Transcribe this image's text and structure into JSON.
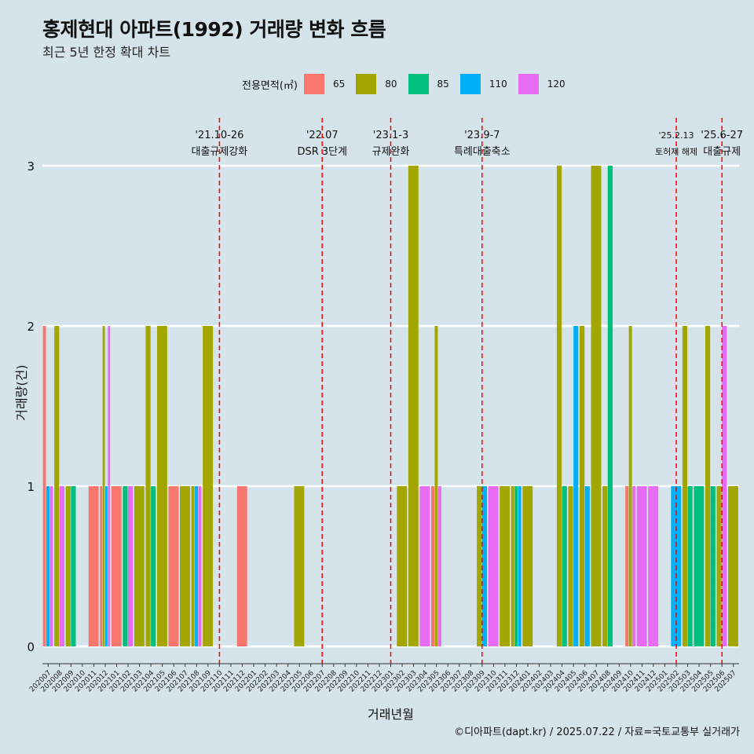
{
  "title": "홍제현대 아파트(1992) 거래량 변화 흐름",
  "subtitle": "최근 5년 한정 확대 차트",
  "caption": "©디아파트(dapt.kr) / 2025.07.22 / 자료=국토교통부 실거래가",
  "legend": {
    "title": "전용면적(㎡)",
    "items": [
      {
        "label": "65",
        "color": "#f8766d"
      },
      {
        "label": "80",
        "color": "#a3a500"
      },
      {
        "label": "85",
        "color": "#00bf7d"
      },
      {
        "label": "110",
        "color": "#00b0f6"
      },
      {
        "label": "120",
        "color": "#e76bf3"
      }
    ]
  },
  "chart_data": {
    "type": "bar",
    "xlabel": "거래년월",
    "ylabel": "거래량(건)",
    "yticks": [
      0,
      1,
      2,
      3
    ],
    "ylim": [
      0,
      3
    ],
    "categories": [
      "202007",
      "202008",
      "202009",
      "202010",
      "202011",
      "202012",
      "202101",
      "202102",
      "202103",
      "202104",
      "202105",
      "202106",
      "202107",
      "202108",
      "202109",
      "202110",
      "202111",
      "202112",
      "202201",
      "202202",
      "202203",
      "202204",
      "202205",
      "202206",
      "202207",
      "202208",
      "202209",
      "202210",
      "202211",
      "202212",
      "202301",
      "202302",
      "202303",
      "202304",
      "202305",
      "202306",
      "202307",
      "202308",
      "202309",
      "202310",
      "202311",
      "202312",
      "202401",
      "202402",
      "202403",
      "202404",
      "202405",
      "202406",
      "202407",
      "202408",
      "202409",
      "202410",
      "202411",
      "202412",
      "202501",
      "202502",
      "202503",
      "202504",
      "202505",
      "202506",
      "202507"
    ],
    "series_names": [
      "65",
      "80",
      "85",
      "110",
      "120"
    ],
    "bars": [
      {
        "month": "202007",
        "values": [
          2,
          0,
          0,
          1,
          1
        ]
      },
      {
        "month": "202008",
        "values": [
          0,
          2,
          0,
          0,
          1
        ]
      },
      {
        "month": "202009",
        "values": [
          0,
          1,
          1,
          0,
          0
        ]
      },
      {
        "month": "202011",
        "values": [
          1,
          0,
          0,
          0,
          0
        ]
      },
      {
        "month": "202012",
        "values": [
          1,
          2,
          0,
          1,
          2
        ]
      },
      {
        "month": "202101",
        "values": [
          1,
          0,
          0,
          0,
          0
        ]
      },
      {
        "month": "202102",
        "values": [
          0,
          0,
          1,
          0,
          1
        ]
      },
      {
        "month": "202103",
        "values": [
          0,
          1,
          0,
          0,
          0
        ]
      },
      {
        "month": "202104",
        "values": [
          0,
          2,
          1,
          0,
          0
        ]
      },
      {
        "month": "202105",
        "values": [
          0,
          2,
          0,
          0,
          0
        ]
      },
      {
        "month": "202106",
        "values": [
          1,
          0,
          0,
          0,
          0
        ]
      },
      {
        "month": "202107",
        "values": [
          0,
          1,
          0,
          0,
          0
        ]
      },
      {
        "month": "202108",
        "values": [
          0,
          1,
          0,
          1,
          1
        ]
      },
      {
        "month": "202109",
        "values": [
          0,
          2,
          0,
          0,
          0
        ]
      },
      {
        "month": "202112",
        "values": [
          1,
          0,
          0,
          0,
          0
        ]
      },
      {
        "month": "202205",
        "values": [
          0,
          1,
          0,
          0,
          0
        ]
      },
      {
        "month": "202302",
        "values": [
          0,
          1,
          0,
          0,
          0
        ]
      },
      {
        "month": "202303",
        "values": [
          0,
          3,
          0,
          0,
          0
        ]
      },
      {
        "month": "202304",
        "values": [
          0,
          0,
          0,
          0,
          1
        ]
      },
      {
        "month": "202305",
        "values": [
          1,
          2,
          0,
          0,
          1
        ]
      },
      {
        "month": "202309",
        "values": [
          0,
          1,
          0,
          1,
          0
        ]
      },
      {
        "month": "202310",
        "values": [
          0,
          0,
          0,
          0,
          1
        ]
      },
      {
        "month": "202311",
        "values": [
          0,
          1,
          0,
          0,
          0
        ]
      },
      {
        "month": "202312",
        "values": [
          0,
          1,
          1,
          1,
          0
        ]
      },
      {
        "month": "202401",
        "values": [
          0,
          1,
          0,
          0,
          0
        ]
      },
      {
        "month": "202404",
        "values": [
          0,
          3,
          1,
          0,
          0
        ]
      },
      {
        "month": "202405",
        "values": [
          0,
          1,
          0,
          2,
          0
        ]
      },
      {
        "month": "202406",
        "values": [
          0,
          2,
          0,
          1,
          0
        ]
      },
      {
        "month": "202407",
        "values": [
          0,
          3,
          0,
          0,
          0
        ]
      },
      {
        "month": "202408",
        "values": [
          0,
          1,
          3,
          0,
          0
        ]
      },
      {
        "month": "202410",
        "values": [
          1,
          2,
          0,
          0,
          1
        ]
      },
      {
        "month": "202411",
        "values": [
          0,
          0,
          0,
          0,
          1
        ]
      },
      {
        "month": "202412",
        "values": [
          0,
          0,
          0,
          0,
          1
        ]
      },
      {
        "month": "202502",
        "values": [
          0,
          0,
          0,
          1,
          0
        ]
      },
      {
        "month": "202503",
        "values": [
          0,
          2,
          1,
          0,
          0
        ]
      },
      {
        "month": "202504",
        "values": [
          0,
          0,
          1,
          0,
          0
        ]
      },
      {
        "month": "202505",
        "values": [
          0,
          2,
          1,
          0,
          0
        ]
      },
      {
        "month": "202506",
        "values": [
          0,
          1,
          0,
          0,
          2
        ]
      },
      {
        "month": "202507",
        "values": [
          0,
          1,
          0,
          0,
          0
        ]
      }
    ],
    "annotations": [
      {
        "month": "202110",
        "line1": "'21.10-26",
        "line2": "대출규제강화"
      },
      {
        "month": "202207",
        "line1": "'22.07",
        "line2": "DSR 3단계"
      },
      {
        "month": "202301",
        "line1": "'23.1-3",
        "line2": "규제완화"
      },
      {
        "month": "202309",
        "line1": "'23.9-7",
        "line2": "특례대출축소"
      },
      {
        "month": "202502",
        "line1": "'25.2.13",
        "line2": "토허제 해제"
      },
      {
        "month": "202506",
        "line1": "'25.6-27",
        "line2": "대출규제"
      }
    ],
    "grid": true
  }
}
